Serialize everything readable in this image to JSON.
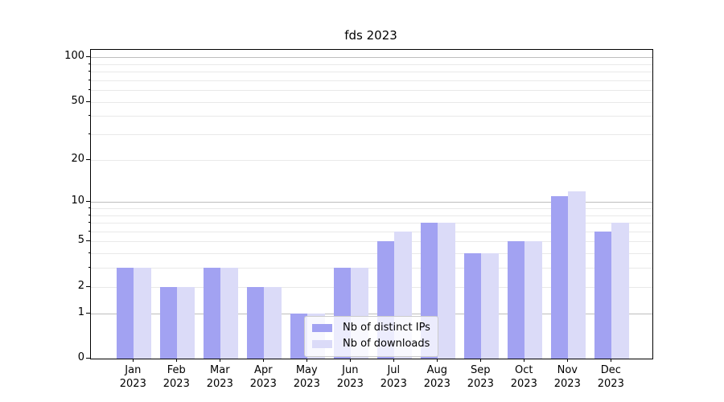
{
  "chart_data": {
    "type": "bar",
    "title": "fds 2023",
    "categories": [
      "Jan 2023",
      "Feb 2023",
      "Mar 2023",
      "Apr 2023",
      "May 2023",
      "Jun 2023",
      "Jul 2023",
      "Aug 2023",
      "Sep 2023",
      "Oct 2023",
      "Nov 2023",
      "Dec 2023"
    ],
    "series": [
      {
        "name": "Nb of distinct IPs",
        "color": "#a2a2f2",
        "values": [
          3,
          2,
          3,
          2,
          1,
          3,
          5,
          7,
          4,
          5,
          11,
          6
        ]
      },
      {
        "name": "Nb of downloads",
        "color": "#dbdbf8",
        "values": [
          3,
          2,
          3,
          2,
          1,
          3,
          6,
          7,
          4,
          5,
          12,
          7
        ]
      }
    ],
    "yscale": "log1p",
    "ylim": [
      0,
      112
    ],
    "y_ticks": [
      0,
      1,
      2,
      5,
      10,
      20,
      50,
      100
    ],
    "y_major_gridlines": [
      1,
      10,
      100
    ],
    "y_minor_gridlines": [
      2,
      3,
      4,
      5,
      6,
      7,
      8,
      9,
      20,
      30,
      40,
      50,
      60,
      70,
      80,
      90
    ],
    "grid": "both",
    "legend_position": "lower center (inside plot)"
  },
  "colors": {
    "background": "#ffffff",
    "spine": "#000000",
    "grid_major": "#bdbdbd",
    "grid_minor": "#e9e9e9",
    "legend_border": "#cccccc",
    "legend_background": "rgba(255,255,255,0.8)",
    "text": "#000000"
  }
}
